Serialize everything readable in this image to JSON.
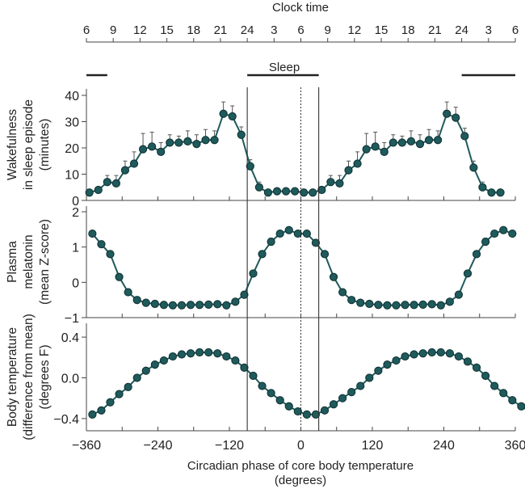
{
  "chart_data": {
    "type": "line",
    "top_axis": {
      "title": "Clock time",
      "tick_labels": [
        "6",
        "9",
        "12",
        "15",
        "18",
        "21",
        "24",
        "3",
        "6",
        "9",
        "12",
        "15",
        "18",
        "21",
        "24",
        "3",
        "6"
      ]
    },
    "sleep_label": "Sleep",
    "sleep_bars_phase": [
      [
        -360,
        -325
      ],
      [
        -90,
        30
      ],
      [
        270,
        360
      ]
    ],
    "xlabel_line1": "Circadian phase of core body temperature",
    "xlabel_line2": "(degrees)",
    "xlim": [
      -360,
      360
    ],
    "xticks": [
      -360,
      -240,
      -120,
      0,
      120,
      240,
      360
    ],
    "xtick_labels": [
      "−360",
      "−240",
      "−120",
      "0",
      "120",
      "240",
      "360"
    ],
    "vlines": {
      "solid": [
        -90,
        30
      ],
      "dotted": [
        0
      ]
    },
    "color": "#1f5a5c",
    "panels": [
      {
        "name": "wakefulness",
        "ylabel": [
          "Wakefulness",
          "in sleep episode",
          "(minutes)"
        ],
        "ylim": [
          0,
          40
        ],
        "yticks": [
          0,
          10,
          20,
          30,
          40
        ],
        "ytick_labels": [
          "0",
          "10",
          "20",
          "30",
          "40"
        ],
        "x_start": -355,
        "x_step": 15,
        "values": [
          3,
          4,
          7,
          6.5,
          11.5,
          14,
          19.5,
          20.5,
          18.5,
          22,
          22,
          22.5,
          21.5,
          23,
          23,
          33,
          32,
          25,
          13,
          5,
          3,
          3.5,
          3.5,
          3.5,
          3,
          3,
          4,
          7,
          6.5,
          11.5,
          14,
          19.5,
          20.5,
          18.5,
          22,
          22,
          22.5,
          21.5,
          23,
          23,
          33,
          31.5,
          24.5,
          12.5,
          5,
          3,
          3
        ],
        "errors": [
          0,
          0,
          2.5,
          3,
          3.5,
          4.5,
          6,
          5.5,
          3.5,
          3,
          2.5,
          4,
          3.5,
          4,
          3.5,
          4.5,
          4,
          3,
          2.5,
          2,
          0,
          0,
          0,
          0,
          0,
          0,
          0,
          2.5,
          3,
          3.5,
          4.5,
          6,
          5.5,
          3.5,
          3,
          2.5,
          4,
          3.5,
          4,
          3.5,
          4.5,
          4,
          3,
          2.5,
          2,
          0,
          0
        ]
      },
      {
        "name": "melatonin",
        "ylabel": [
          "Plasma",
          "melatonin",
          "(mean Z-score)"
        ],
        "ylim": [
          -1,
          2
        ],
        "yticks": [
          -1,
          0,
          1,
          2
        ],
        "ytick_labels": [
          "−1",
          "0",
          "1",
          "2"
        ],
        "x_start": -350,
        "x_step": 15,
        "values": [
          1.38,
          1.08,
          0.8,
          0.15,
          -0.28,
          -0.5,
          -0.58,
          -0.61,
          -0.64,
          -0.65,
          -0.65,
          -0.64,
          -0.64,
          -0.63,
          -0.62,
          -0.65,
          -0.55,
          -0.35,
          0.25,
          0.8,
          1.15,
          1.38,
          1.48,
          1.38,
          1.38,
          1.12,
          0.8,
          0.15,
          -0.28,
          -0.5,
          -0.58,
          -0.61,
          -0.64,
          -0.65,
          -0.65,
          -0.64,
          -0.64,
          -0.63,
          -0.62,
          -0.65,
          -0.55,
          -0.35,
          0.25,
          0.8,
          1.15,
          1.38,
          1.48,
          1.38
        ],
        "errors": [
          0.08,
          0.08,
          0.07,
          0.07,
          0.07,
          0.06,
          0,
          0,
          0,
          0,
          0,
          0,
          0,
          0,
          0,
          0,
          0,
          0,
          0.07,
          0.07,
          0.1,
          0.08,
          0.07,
          0.07,
          0.07,
          0.07,
          0.07,
          0.07,
          0.07,
          0.06,
          0,
          0,
          0,
          0,
          0,
          0,
          0,
          0,
          0,
          0,
          0,
          0,
          0.07,
          0.07,
          0.1,
          0.08,
          0.07,
          0.07
        ]
      },
      {
        "name": "temperature",
        "ylabel": [
          "Body temperature",
          "(difference from mean)",
          "(degrees F)"
        ],
        "ylim": [
          -0.5,
          0.5
        ],
        "yticks": [
          -0.4,
          0.0,
          0.4
        ],
        "ytick_labels": [
          "−0.4",
          "0.0",
          "0.4"
        ],
        "x_start": -350,
        "x_step": 15,
        "values": [
          -0.36,
          -0.32,
          -0.24,
          -0.16,
          -0.09,
          0.0,
          0.07,
          0.13,
          0.17,
          0.21,
          0.23,
          0.24,
          0.25,
          0.25,
          0.24,
          0.21,
          0.17,
          0.1,
          0.02,
          -0.08,
          -0.15,
          -0.22,
          -0.28,
          -0.33,
          -0.36,
          -0.36,
          -0.32,
          -0.26,
          -0.2,
          -0.14,
          -0.08,
          0.0,
          0.07,
          0.13,
          0.17,
          0.21,
          0.23,
          0.24,
          0.25,
          0.25,
          0.24,
          0.21,
          0.16,
          0.1,
          0.02,
          -0.08,
          -0.15,
          -0.22,
          -0.28,
          -0.33,
          -0.36
        ]
      }
    ]
  }
}
